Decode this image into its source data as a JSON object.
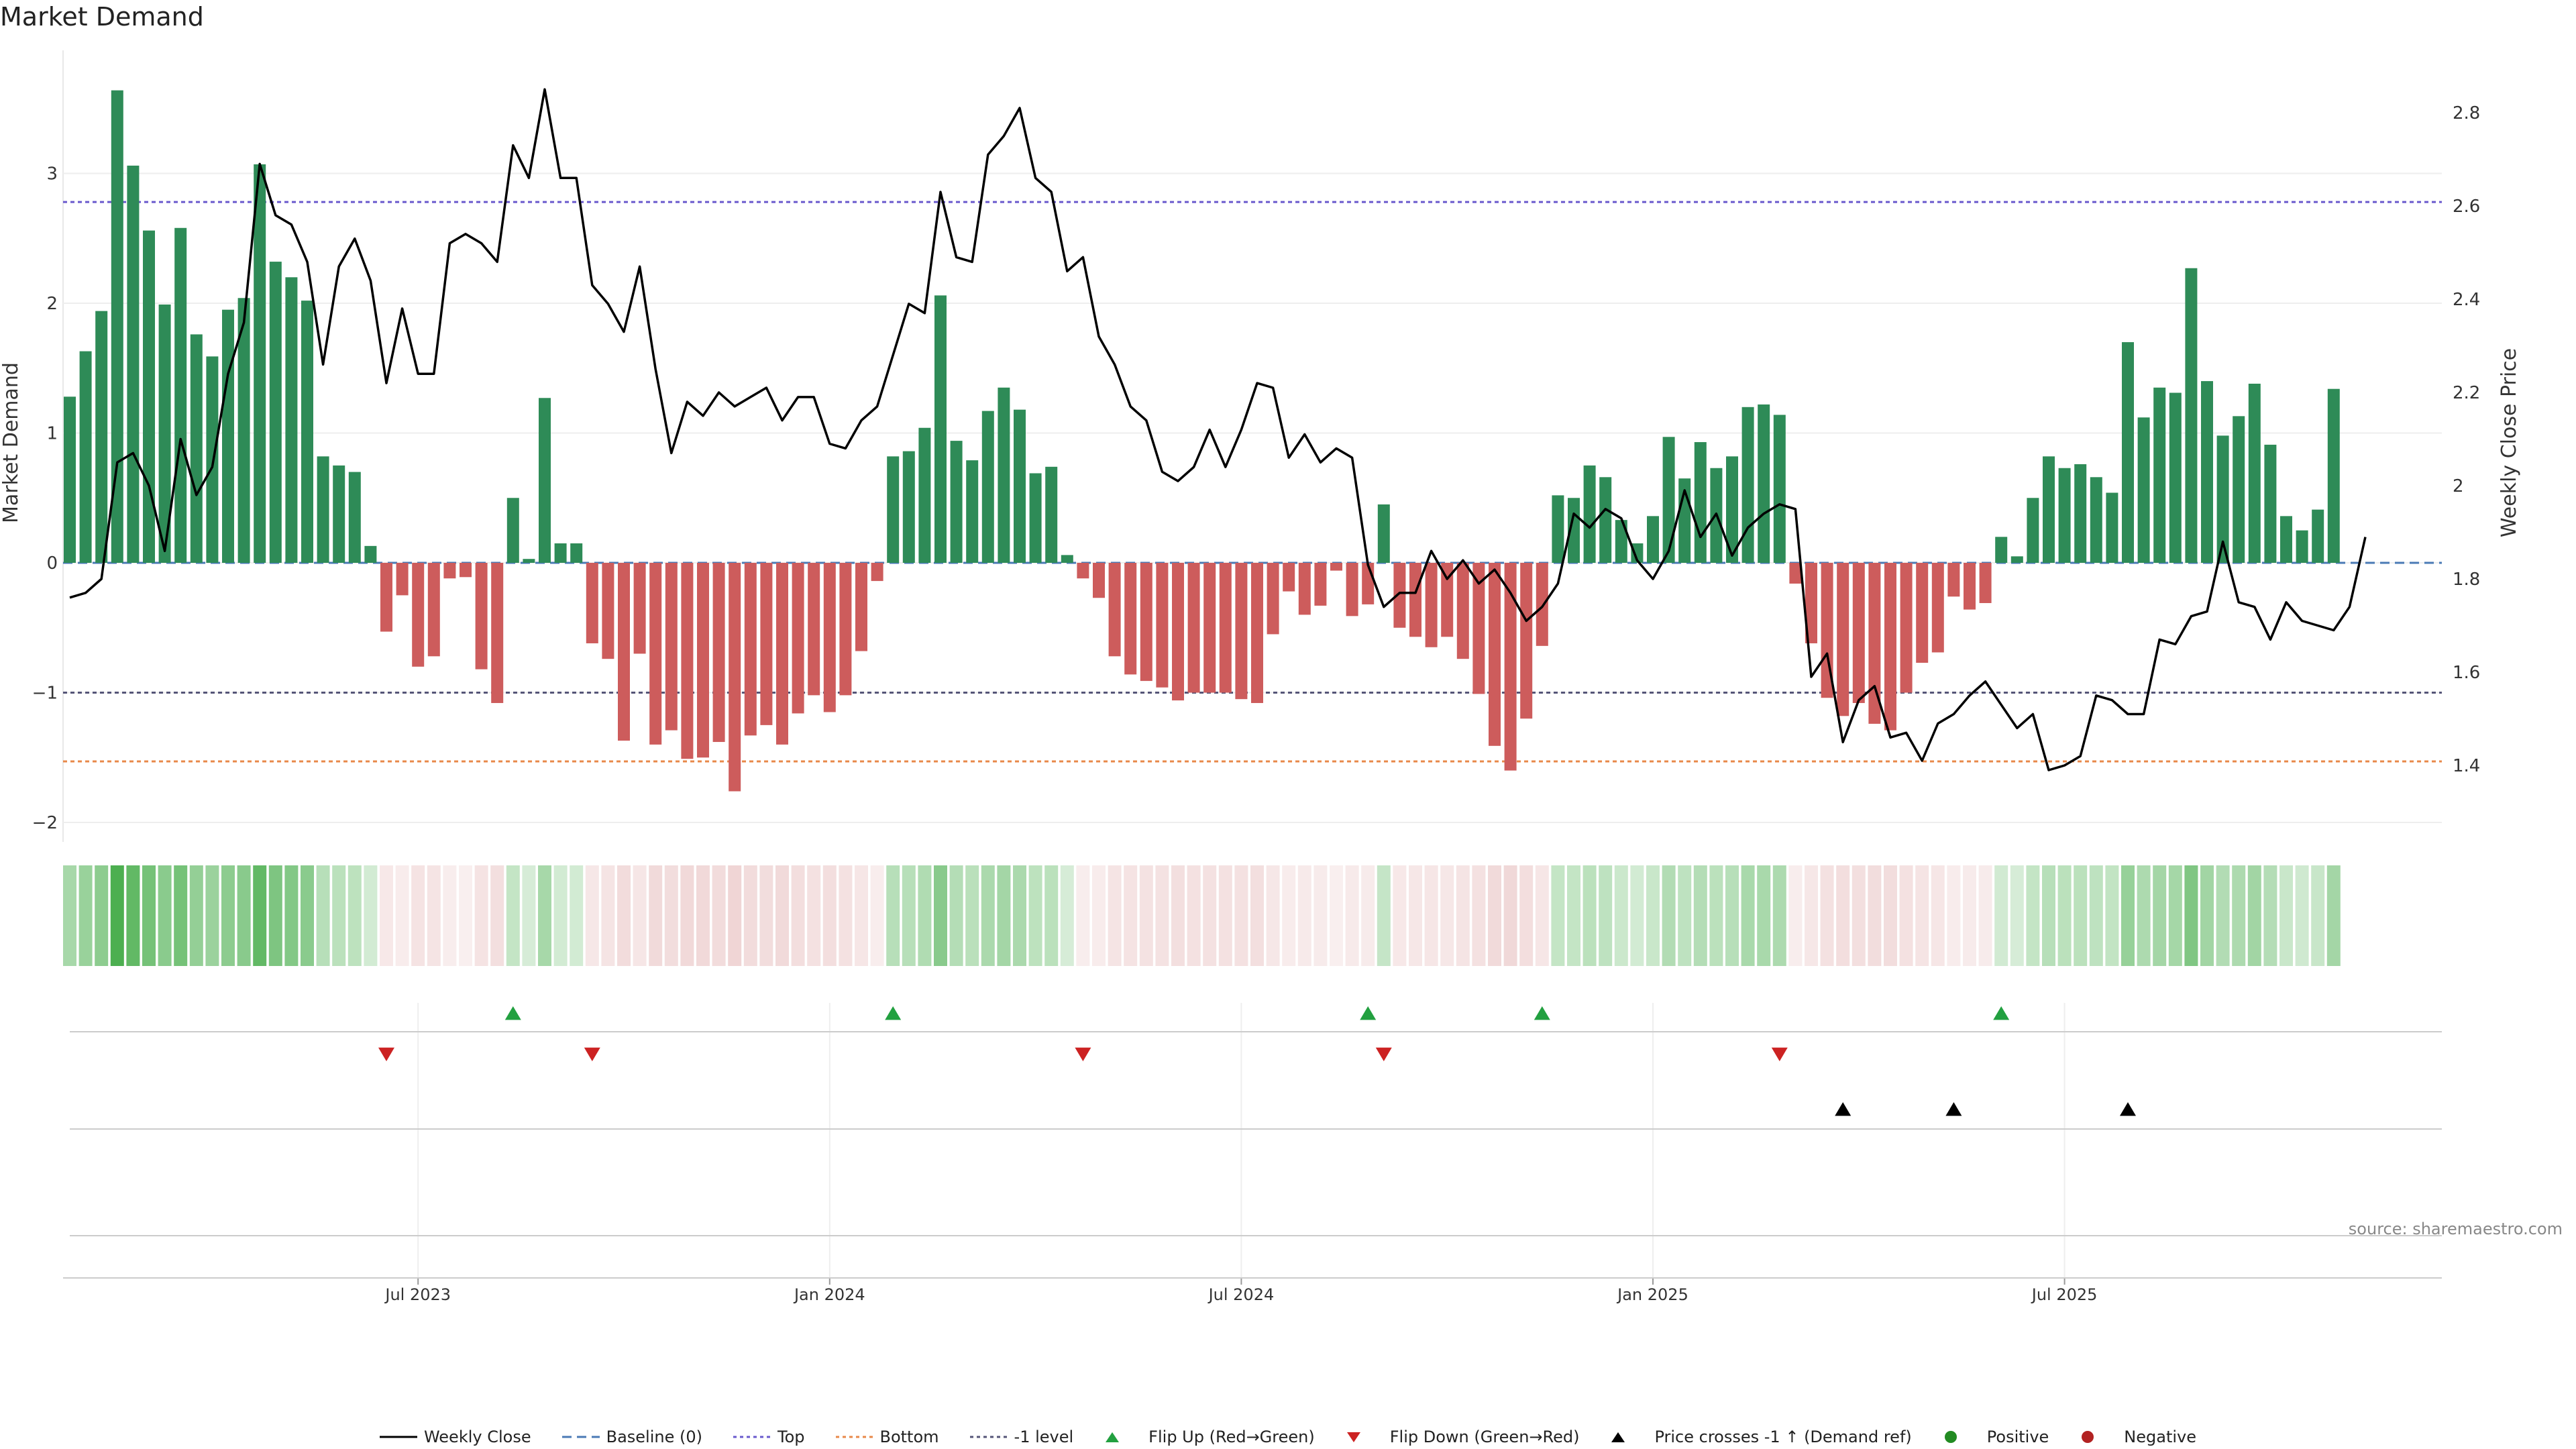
{
  "chart_data": {
    "type": "bar",
    "title": "Market Demand",
    "ylabel_left": "Market Demand",
    "ylabel_right": "Weekly Close Price",
    "left_axis": {
      "min": -2,
      "max": 3.8,
      "ticks": [
        -2,
        -1,
        0,
        1,
        2,
        3
      ],
      "tick_labels": [
        "−2",
        "−1",
        "0",
        "1",
        "2",
        "3"
      ]
    },
    "right_axis": {
      "min": 1.34,
      "max": 2.85,
      "ticks": [
        1.4,
        1.6,
        1.8,
        2.0,
        2.2,
        2.4,
        2.6,
        2.8
      ],
      "tick_labels": [
        "1.4",
        "1.6",
        "1.8",
        "2",
        "2.2",
        "2.4",
        "2.6",
        "2.8"
      ]
    },
    "x_ticks": [
      {
        "week": 22,
        "label": "Jul 2023"
      },
      {
        "week": 48,
        "label": "Jan 2024"
      },
      {
        "week": 74,
        "label": "Jul 2024"
      },
      {
        "week": 100,
        "label": "Jan 2025"
      },
      {
        "week": 126,
        "label": "Jul 2025"
      }
    ],
    "reference_lines": {
      "top": 2.78,
      "bottom": -1.53,
      "minus_one": -1,
      "baseline": 0
    },
    "demand": [
      1.28,
      1.63,
      1.94,
      3.64,
      3.06,
      2.56,
      1.99,
      2.58,
      1.76,
      1.59,
      1.95,
      2.04,
      3.07,
      2.32,
      2.2,
      2.02,
      0.82,
      0.75,
      0.7,
      0.13,
      -0.53,
      -0.25,
      -0.8,
      -0.72,
      -0.12,
      -0.11,
      -0.82,
      -1.08,
      0.5,
      0.03,
      1.27,
      0.15,
      0.15,
      -0.62,
      -0.74,
      -1.37,
      -0.7,
      -1.4,
      -1.29,
      -1.51,
      -1.5,
      -1.38,
      -1.76,
      -1.33,
      -1.25,
      -1.4,
      -1.16,
      -1.02,
      -1.15,
      -1.02,
      -0.68,
      -0.14,
      0.82,
      0.86,
      1.04,
      2.06,
      0.94,
      0.79,
      1.17,
      1.35,
      1.18,
      0.69,
      0.74,
      0.06,
      -0.12,
      -0.27,
      -0.72,
      -0.86,
      -0.91,
      -0.96,
      -1.06,
      -1.0,
      -1.0,
      -1.0,
      -1.05,
      -1.08,
      -0.55,
      -0.22,
      -0.4,
      -0.33,
      -0.06,
      -0.41,
      -0.32,
      0.45,
      -0.5,
      -0.57,
      -0.65,
      -0.57,
      -0.74,
      -1.01,
      -1.41,
      -1.6,
      -1.2,
      -0.64,
      0.52,
      0.5,
      0.75,
      0.66,
      0.33,
      0.15,
      0.36,
      0.97,
      0.65,
      0.93,
      0.73,
      0.82,
      1.2,
      1.22,
      1.14,
      -0.16,
      -0.62,
      -1.04,
      -1.18,
      -1.08,
      -1.24,
      -1.29,
      -1.0,
      -0.77,
      -0.69,
      -0.26,
      -0.36,
      -0.31,
      0.2,
      0.05,
      0.5,
      0.82,
      0.73,
      0.76,
      0.66,
      0.54,
      1.7,
      1.12,
      1.35,
      1.31,
      2.27,
      1.4,
      0.98,
      1.13,
      1.38,
      0.91,
      0.36,
      0.25,
      0.41,
      1.34
    ],
    "close": [
      1.76,
      1.77,
      1.8,
      2.05,
      2.07,
      2.0,
      1.86,
      2.1,
      1.98,
      2.04,
      2.24,
      2.35,
      2.69,
      2.58,
      2.56,
      2.48,
      2.26,
      2.47,
      2.53,
      2.44,
      2.22,
      2.38,
      2.24,
      2.24,
      2.52,
      2.54,
      2.52,
      2.48,
      2.73,
      2.66,
      2.85,
      2.66,
      2.66,
      2.43,
      2.39,
      2.33,
      2.47,
      2.25,
      2.07,
      2.18,
      2.15,
      2.2,
      2.17,
      2.19,
      2.21,
      2.14,
      2.19,
      2.19,
      2.09,
      2.08,
      2.14,
      2.17,
      2.28,
      2.39,
      2.37,
      2.63,
      2.49,
      2.48,
      2.71,
      2.75,
      2.81,
      2.66,
      2.63,
      2.46,
      2.49,
      2.32,
      2.26,
      2.17,
      2.14,
      2.03,
      2.01,
      2.04,
      2.12,
      2.04,
      2.12,
      2.22,
      2.21,
      2.06,
      2.11,
      2.05,
      2.08,
      2.06,
      1.83,
      1.74,
      1.77,
      1.77,
      1.86,
      1.8,
      1.84,
      1.79,
      1.82,
      1.77,
      1.71,
      1.74,
      1.79,
      1.94,
      1.91,
      1.95,
      1.93,
      1.84,
      1.8,
      1.86,
      1.99,
      1.89,
      1.94,
      1.85,
      1.91,
      1.94,
      1.96,
      1.95,
      1.59,
      1.64,
      1.45,
      1.54,
      1.57,
      1.46,
      1.47,
      1.41,
      1.49,
      1.51,
      1.55,
      1.58,
      1.53,
      1.48,
      1.51,
      1.39,
      1.4,
      1.42,
      1.55,
      1.54,
      1.51,
      1.51,
      1.67,
      1.66,
      1.72,
      1.73,
      1.88,
      1.75,
      1.74,
      1.67,
      1.75,
      1.71,
      1.7,
      1.69,
      1.74,
      1.89
    ],
    "signals": {
      "flip_up": [
        28,
        52,
        82,
        93,
        122
      ],
      "flip_down": [
        20,
        33,
        64,
        83,
        108
      ],
      "price_crosses_minus1_up": [
        112,
        119,
        130
      ]
    },
    "legend": [
      "Weekly Close",
      "Baseline (0)",
      "Top",
      "Bottom",
      "-1 level",
      "Flip Up (Red→Green)",
      "Flip Down (Green→Red)",
      "Price crosses -1 ↑ (Demand ref)",
      "Positive",
      "Negative"
    ],
    "source_note": "source: sharemaestro.com"
  },
  "colors": {
    "positive": "#2e8b57",
    "negative": "#cd5c5c",
    "price": "#000000",
    "baseline": "#4a7ab5",
    "top": "#6a5acd",
    "bottom": "#e8894a",
    "minus_one": "#555577",
    "flip_up": "#22a040",
    "flip_down": "#cc2222",
    "positive_dot": "#228b22",
    "negative_dot": "#b22222"
  }
}
